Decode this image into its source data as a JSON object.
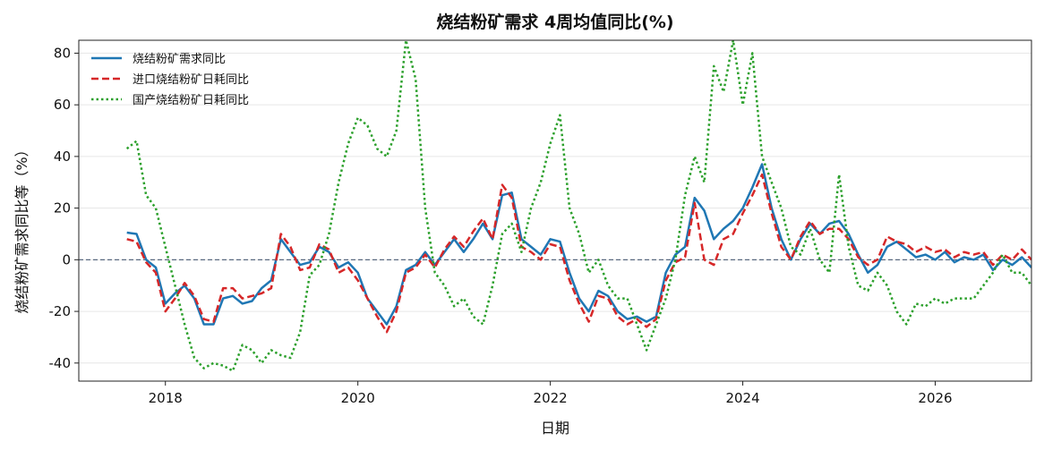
{
  "chart_data": {
    "type": "line",
    "title": "烧结粉矿需求 4周均值同比(%)",
    "xlabel": "日期",
    "ylabel": "烧结粉矿需求同比等（%）",
    "xlim": [
      2017.1,
      2027.0
    ],
    "ylim": [
      -47,
      85
    ],
    "x_ticks": [
      2018,
      2020,
      2022,
      2024,
      2026
    ],
    "x_tick_labels": [
      "2018",
      "2020",
      "2022",
      "2024",
      "2026"
    ],
    "y_ticks": [
      -40,
      -20,
      0,
      20,
      40,
      60,
      80
    ],
    "y_tick_labels": [
      "-40",
      "-20",
      "0",
      "20",
      "40",
      "60",
      "80"
    ],
    "grid": true,
    "reference_line": 0,
    "legend_position": "top-left",
    "series": [
      {
        "name": "烧结粉矿需求同比",
        "color": "#1f77b4",
        "style": "solid",
        "points": [
          [
            2017.6,
            10.5
          ],
          [
            2017.7,
            10
          ],
          [
            2017.8,
            0
          ],
          [
            2017.9,
            -3
          ],
          [
            2018.0,
            -17
          ],
          [
            2018.1,
            -13
          ],
          [
            2018.2,
            -10
          ],
          [
            2018.3,
            -15
          ],
          [
            2018.4,
            -25
          ],
          [
            2018.5,
            -25
          ],
          [
            2018.6,
            -15
          ],
          [
            2018.7,
            -14
          ],
          [
            2018.8,
            -17
          ],
          [
            2018.9,
            -16
          ],
          [
            2019.0,
            -11
          ],
          [
            2019.1,
            -8
          ],
          [
            2019.2,
            8
          ],
          [
            2019.3,
            3
          ],
          [
            2019.4,
            -2
          ],
          [
            2019.5,
            -1
          ],
          [
            2019.6,
            5
          ],
          [
            2019.7,
            3
          ],
          [
            2019.8,
            -3
          ],
          [
            2019.9,
            -1
          ],
          [
            2020.0,
            -5
          ],
          [
            2020.1,
            -15
          ],
          [
            2020.2,
            -20
          ],
          [
            2020.3,
            -25
          ],
          [
            2020.4,
            -18
          ],
          [
            2020.5,
            -4
          ],
          [
            2020.6,
            -2
          ],
          [
            2020.7,
            3
          ],
          [
            2020.8,
            -2
          ],
          [
            2020.9,
            3
          ],
          [
            2021.0,
            8
          ],
          [
            2021.1,
            3
          ],
          [
            2021.2,
            8
          ],
          [
            2021.3,
            14
          ],
          [
            2021.4,
            8
          ],
          [
            2021.5,
            25
          ],
          [
            2021.6,
            26
          ],
          [
            2021.7,
            8
          ],
          [
            2021.8,
            5
          ],
          [
            2021.9,
            2
          ],
          [
            2022.0,
            8
          ],
          [
            2022.1,
            7
          ],
          [
            2022.2,
            -5
          ],
          [
            2022.3,
            -15
          ],
          [
            2022.4,
            -20
          ],
          [
            2022.5,
            -12
          ],
          [
            2022.6,
            -14
          ],
          [
            2022.7,
            -20
          ],
          [
            2022.8,
            -23
          ],
          [
            2022.9,
            -22
          ],
          [
            2023.0,
            -24
          ],
          [
            2023.1,
            -22
          ],
          [
            2023.2,
            -5
          ],
          [
            2023.3,
            2
          ],
          [
            2023.4,
            5
          ],
          [
            2023.5,
            24
          ],
          [
            2023.6,
            19
          ],
          [
            2023.7,
            8
          ],
          [
            2023.8,
            12
          ],
          [
            2023.9,
            15
          ],
          [
            2024.0,
            20
          ],
          [
            2024.1,
            28
          ],
          [
            2024.2,
            37
          ],
          [
            2024.3,
            20
          ],
          [
            2024.4,
            8
          ],
          [
            2024.5,
            0
          ],
          [
            2024.6,
            8
          ],
          [
            2024.7,
            14
          ],
          [
            2024.8,
            10
          ],
          [
            2024.9,
            14
          ],
          [
            2025.0,
            15
          ],
          [
            2025.1,
            10
          ],
          [
            2025.2,
            2
          ],
          [
            2025.3,
            -5
          ],
          [
            2025.4,
            -2
          ],
          [
            2025.5,
            5
          ],
          [
            2025.6,
            7
          ],
          [
            2025.7,
            4
          ],
          [
            2025.8,
            1
          ],
          [
            2025.9,
            2
          ],
          [
            2026.0,
            0
          ],
          [
            2026.1,
            3
          ],
          [
            2026.2,
            -1
          ],
          [
            2026.3,
            1
          ],
          [
            2026.4,
            0
          ],
          [
            2026.5,
            2
          ],
          [
            2026.6,
            -4
          ],
          [
            2026.7,
            0
          ],
          [
            2026.8,
            -2
          ],
          [
            2026.9,
            1
          ],
          [
            2027.0,
            -3
          ]
        ]
      },
      {
        "name": "进口烧结粉矿日耗同比",
        "color": "#d62728",
        "style": "dashed",
        "points": [
          [
            2017.6,
            8
          ],
          [
            2017.7,
            7
          ],
          [
            2017.8,
            -1
          ],
          [
            2017.9,
            -5
          ],
          [
            2018.0,
            -20
          ],
          [
            2018.1,
            -15
          ],
          [
            2018.2,
            -9
          ],
          [
            2018.3,
            -14
          ],
          [
            2018.4,
            -23
          ],
          [
            2018.5,
            -24
          ],
          [
            2018.6,
            -11
          ],
          [
            2018.7,
            -11
          ],
          [
            2018.8,
            -15
          ],
          [
            2018.9,
            -14
          ],
          [
            2019.0,
            -13
          ],
          [
            2019.1,
            -11
          ],
          [
            2019.2,
            10
          ],
          [
            2019.3,
            5
          ],
          [
            2019.4,
            -4
          ],
          [
            2019.5,
            -3
          ],
          [
            2019.6,
            6
          ],
          [
            2019.7,
            4
          ],
          [
            2019.8,
            -5
          ],
          [
            2019.9,
            -3
          ],
          [
            2020.0,
            -8
          ],
          [
            2020.1,
            -15
          ],
          [
            2020.2,
            -22
          ],
          [
            2020.3,
            -28
          ],
          [
            2020.4,
            -20
          ],
          [
            2020.5,
            -5
          ],
          [
            2020.6,
            -3
          ],
          [
            2020.7,
            2
          ],
          [
            2020.8,
            -3
          ],
          [
            2020.9,
            4
          ],
          [
            2021.0,
            9
          ],
          [
            2021.1,
            5
          ],
          [
            2021.2,
            11
          ],
          [
            2021.3,
            16
          ],
          [
            2021.4,
            8
          ],
          [
            2021.5,
            29
          ],
          [
            2021.6,
            24
          ],
          [
            2021.7,
            5
          ],
          [
            2021.8,
            3
          ],
          [
            2021.9,
            0
          ],
          [
            2022.0,
            6
          ],
          [
            2022.1,
            5
          ],
          [
            2022.2,
            -8
          ],
          [
            2022.3,
            -17
          ],
          [
            2022.4,
            -24
          ],
          [
            2022.5,
            -14
          ],
          [
            2022.6,
            -15
          ],
          [
            2022.7,
            -22
          ],
          [
            2022.8,
            -25
          ],
          [
            2022.9,
            -23
          ],
          [
            2023.0,
            -26
          ],
          [
            2023.1,
            -23
          ],
          [
            2023.2,
            -8
          ],
          [
            2023.3,
            -1
          ],
          [
            2023.4,
            1
          ],
          [
            2023.5,
            22
          ],
          [
            2023.6,
            0
          ],
          [
            2023.7,
            -2
          ],
          [
            2023.8,
            8
          ],
          [
            2023.9,
            10
          ],
          [
            2024.0,
            18
          ],
          [
            2024.1,
            25
          ],
          [
            2024.2,
            33
          ],
          [
            2024.3,
            18
          ],
          [
            2024.4,
            5
          ],
          [
            2024.5,
            0
          ],
          [
            2024.6,
            9
          ],
          [
            2024.7,
            15
          ],
          [
            2024.8,
            10
          ],
          [
            2024.9,
            12
          ],
          [
            2025.0,
            12
          ],
          [
            2025.1,
            8
          ],
          [
            2025.2,
            1
          ],
          [
            2025.3,
            -2
          ],
          [
            2025.4,
            0
          ],
          [
            2025.5,
            9
          ],
          [
            2025.6,
            7
          ],
          [
            2025.7,
            6
          ],
          [
            2025.8,
            3
          ],
          [
            2025.9,
            5
          ],
          [
            2026.0,
            3
          ],
          [
            2026.1,
            4
          ],
          [
            2026.2,
            1
          ],
          [
            2026.3,
            3
          ],
          [
            2026.4,
            2
          ],
          [
            2026.5,
            3
          ],
          [
            2026.6,
            -2
          ],
          [
            2026.7,
            2
          ],
          [
            2026.8,
            0
          ],
          [
            2026.9,
            4
          ],
          [
            2027.0,
            0
          ]
        ]
      },
      {
        "name": "国产烧结粉矿日耗同比",
        "color": "#2ca02c",
        "style": "dotted",
        "points": [
          [
            2017.6,
            43
          ],
          [
            2017.7,
            46
          ],
          [
            2017.8,
            25
          ],
          [
            2017.9,
            20
          ],
          [
            2018.0,
            5
          ],
          [
            2018.1,
            -10
          ],
          [
            2018.2,
            -25
          ],
          [
            2018.3,
            -38
          ],
          [
            2018.4,
            -42
          ],
          [
            2018.5,
            -40
          ],
          [
            2018.6,
            -41
          ],
          [
            2018.7,
            -43
          ],
          [
            2018.8,
            -33
          ],
          [
            2018.9,
            -35
          ],
          [
            2019.0,
            -40
          ],
          [
            2019.1,
            -35
          ],
          [
            2019.2,
            -37
          ],
          [
            2019.3,
            -38
          ],
          [
            2019.4,
            -28
          ],
          [
            2019.5,
            -6
          ],
          [
            2019.6,
            -2
          ],
          [
            2019.7,
            10
          ],
          [
            2019.8,
            30
          ],
          [
            2019.9,
            45
          ],
          [
            2020.0,
            55
          ],
          [
            2020.1,
            52
          ],
          [
            2020.2,
            43
          ],
          [
            2020.3,
            40
          ],
          [
            2020.4,
            50
          ],
          [
            2020.5,
            85
          ],
          [
            2020.6,
            70
          ],
          [
            2020.7,
            20
          ],
          [
            2020.8,
            -5
          ],
          [
            2020.9,
            -10
          ],
          [
            2021.0,
            -18
          ],
          [
            2021.1,
            -15
          ],
          [
            2021.2,
            -22
          ],
          [
            2021.3,
            -25
          ],
          [
            2021.4,
            -10
          ],
          [
            2021.5,
            10
          ],
          [
            2021.6,
            14
          ],
          [
            2021.7,
            3
          ],
          [
            2021.8,
            20
          ],
          [
            2021.9,
            30
          ],
          [
            2022.0,
            45
          ],
          [
            2022.1,
            56
          ],
          [
            2022.2,
            20
          ],
          [
            2022.3,
            10
          ],
          [
            2022.4,
            -5
          ],
          [
            2022.5,
            0
          ],
          [
            2022.6,
            -10
          ],
          [
            2022.7,
            -15
          ],
          [
            2022.8,
            -15
          ],
          [
            2022.9,
            -25
          ],
          [
            2023.0,
            -35
          ],
          [
            2023.1,
            -25
          ],
          [
            2023.2,
            -15
          ],
          [
            2023.3,
            0
          ],
          [
            2023.4,
            25
          ],
          [
            2023.5,
            40
          ],
          [
            2023.6,
            30
          ],
          [
            2023.7,
            75
          ],
          [
            2023.8,
            65
          ],
          [
            2023.9,
            85
          ],
          [
            2024.0,
            60
          ],
          [
            2024.1,
            80
          ],
          [
            2024.2,
            40
          ],
          [
            2024.3,
            30
          ],
          [
            2024.4,
            20
          ],
          [
            2024.5,
            5
          ],
          [
            2024.6,
            2
          ],
          [
            2024.7,
            12
          ],
          [
            2024.8,
            0
          ],
          [
            2024.9,
            -5
          ],
          [
            2025.0,
            33
          ],
          [
            2025.1,
            5
          ],
          [
            2025.2,
            -10
          ],
          [
            2025.3,
            -12
          ],
          [
            2025.4,
            -5
          ],
          [
            2025.5,
            -10
          ],
          [
            2025.6,
            -20
          ],
          [
            2025.7,
            -25
          ],
          [
            2025.8,
            -17
          ],
          [
            2025.9,
            -18
          ],
          [
            2026.0,
            -15
          ],
          [
            2026.1,
            -17
          ],
          [
            2026.2,
            -15
          ],
          [
            2026.3,
            -15
          ],
          [
            2026.4,
            -15
          ],
          [
            2026.5,
            -10
          ],
          [
            2026.6,
            -5
          ],
          [
            2026.7,
            2
          ],
          [
            2026.8,
            -5
          ],
          [
            2026.9,
            -5
          ],
          [
            2027.0,
            -10
          ]
        ]
      }
    ]
  }
}
